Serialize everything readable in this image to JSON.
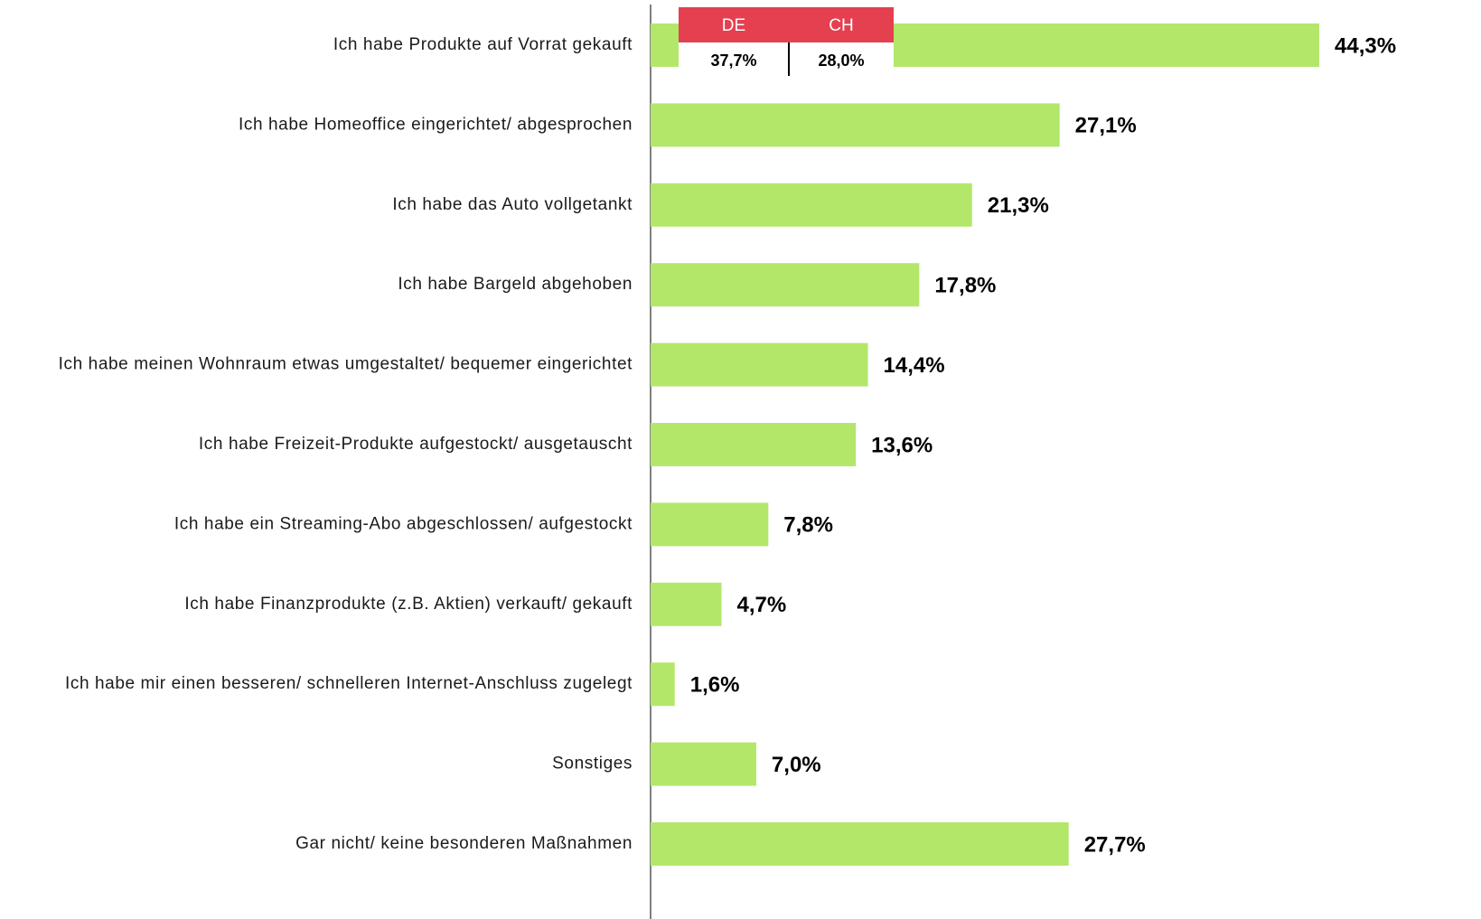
{
  "chart_data": {
    "type": "hbar",
    "categories": [
      "Ich habe Produkte auf Vorrat gekauft",
      "Ich habe Homeoffice eingerichtet/ abgesprochen",
      "Ich habe das Auto vollgetankt",
      "Ich habe Bargeld abgehoben",
      "Ich habe meinen Wohnraum etwas umgestaltet/ bequemer eingerichtet",
      "Ich habe Freizeit-Produkte aufgestockt/ ausgetauscht",
      "Ich habe ein Streaming-Abo abgeschlossen/ aufgestockt",
      "Ich habe Finanzprodukte (z.B. Aktien) verkauft/ gekauft",
      "Ich habe mir einen besseren/ schnelleren Internet-Anschluss zugelegt",
      "Sonstiges",
      "Gar nicht/ keine besonderen Maßnahmen"
    ],
    "values": [
      44.3,
      27.1,
      21.3,
      17.8,
      14.4,
      13.6,
      7.8,
      4.7,
      1.6,
      7.0,
      27.7
    ],
    "value_labels": [
      "44,3%",
      "27,1%",
      "21,3%",
      "17,8%",
      "14,4%",
      "13,6%",
      "7,8%",
      "4,7%",
      "1,6%",
      "7,0%",
      "27,7%"
    ],
    "color": "#b3e76a",
    "inset": {
      "headers": [
        "DE",
        "CH"
      ],
      "values": [
        "37,7%",
        "28,0%"
      ],
      "color": "#e4404f"
    }
  }
}
